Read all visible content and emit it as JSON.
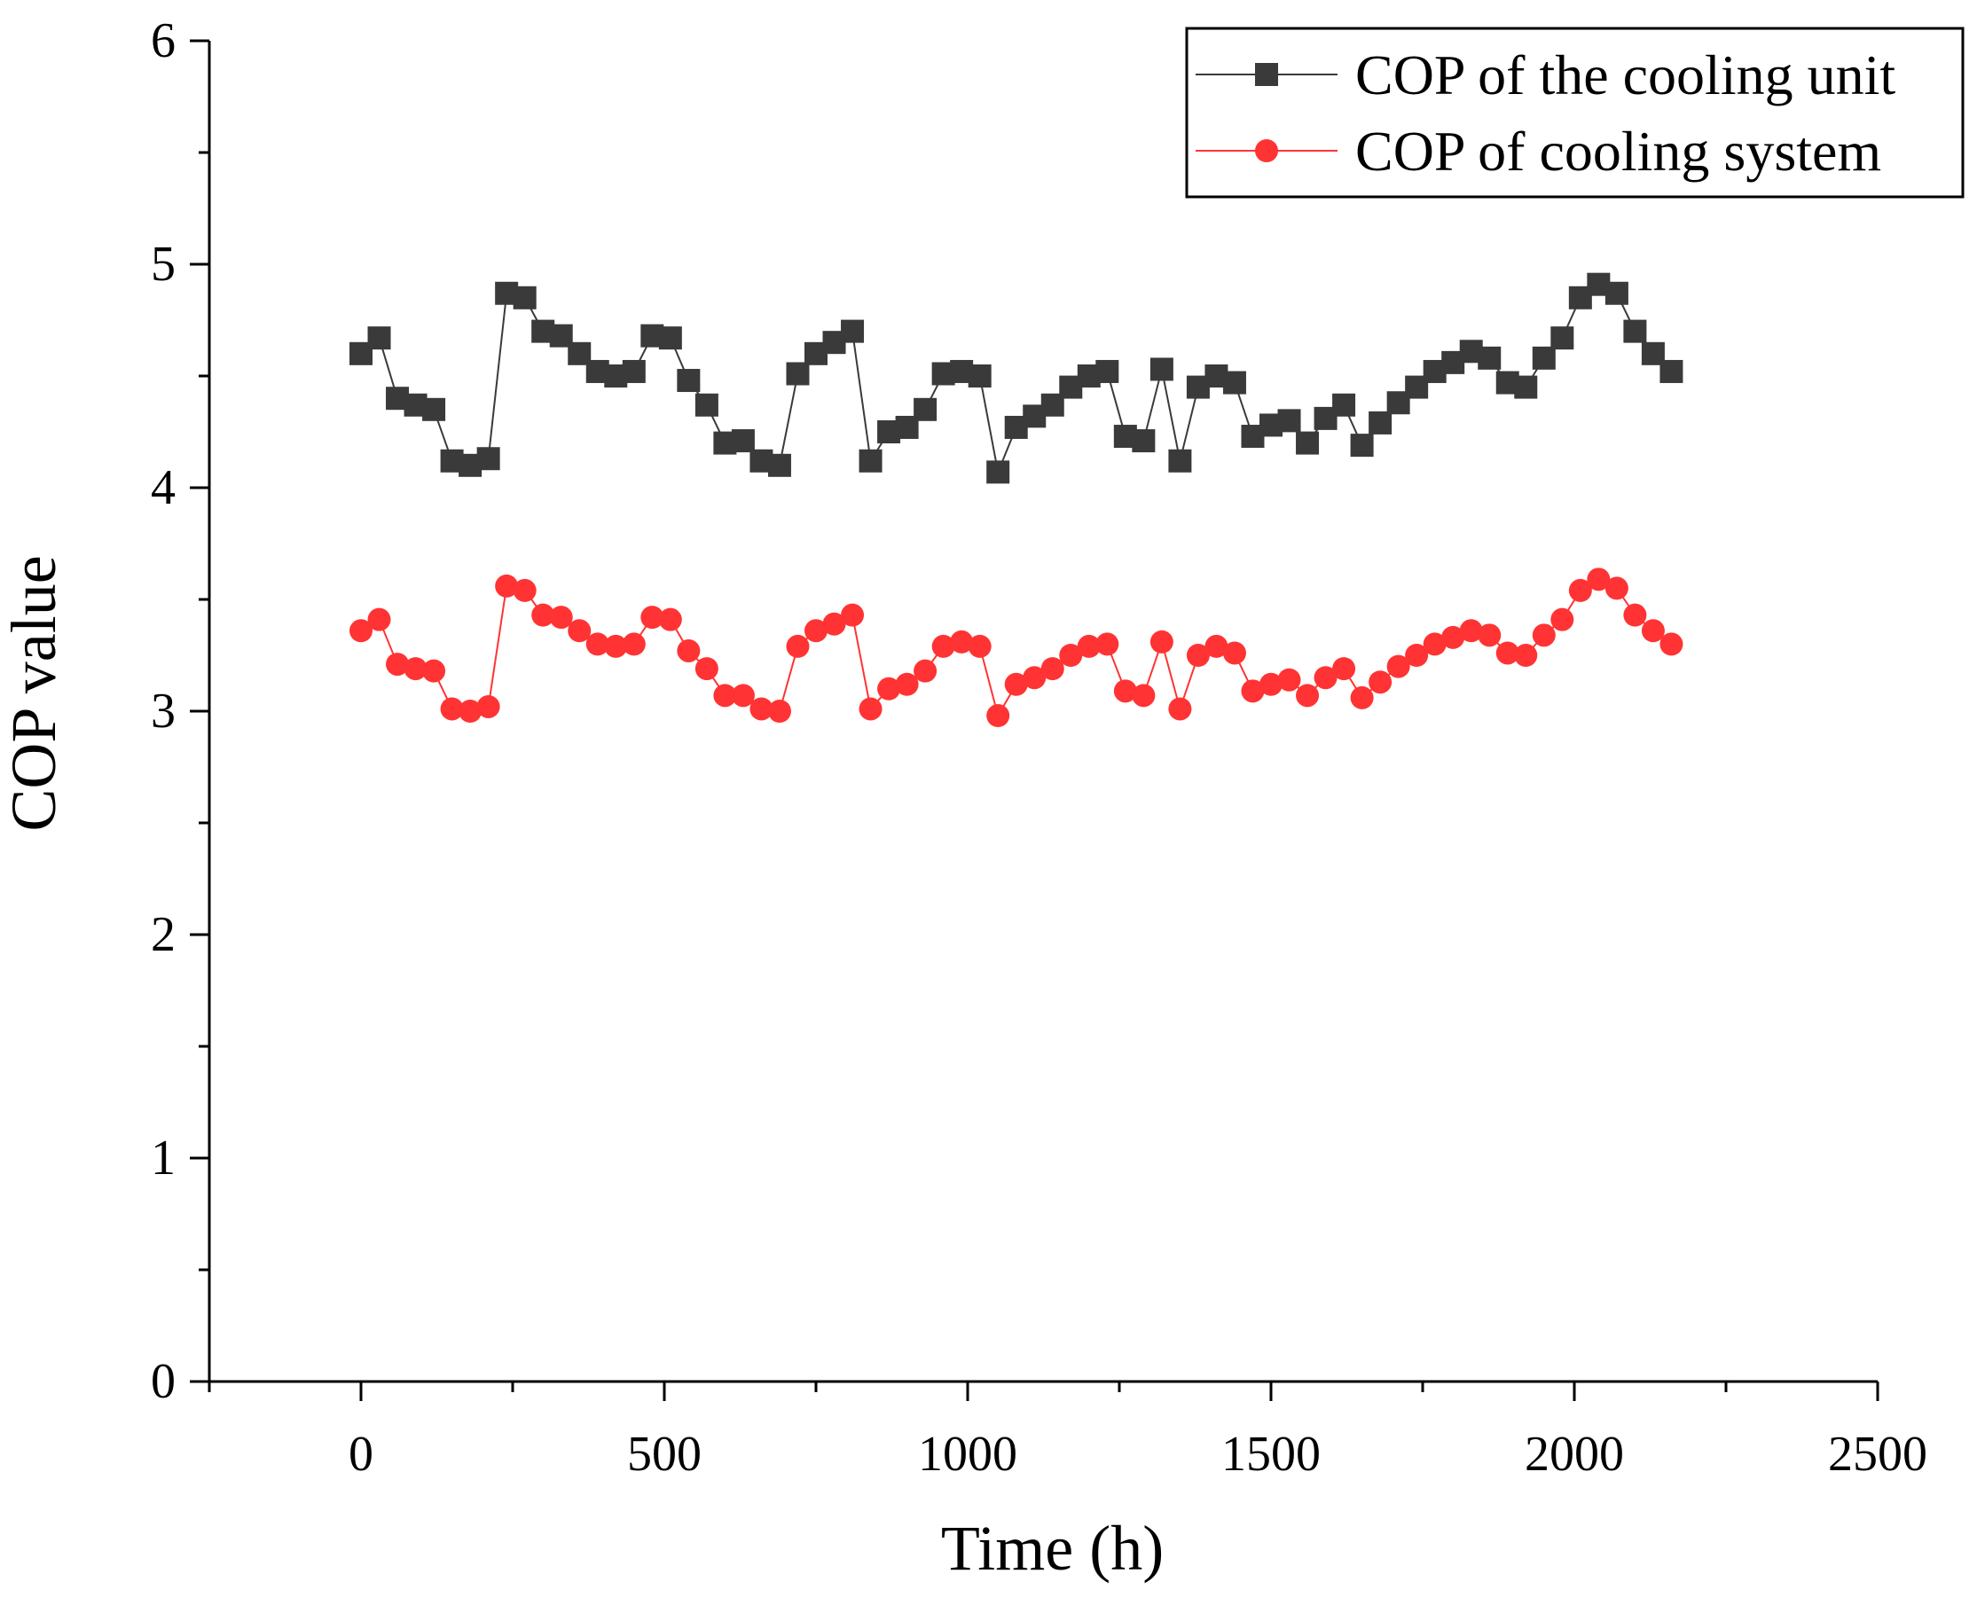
{
  "chart_data": {
    "type": "line",
    "title": "",
    "xlabel": "Time (h)",
    "ylabel": "COP value",
    "xlim": [
      -250,
      2500
    ],
    "ylim": [
      0,
      6
    ],
    "xticks": [
      0,
      500,
      1000,
      1500,
      2000,
      2500
    ],
    "xtick_labels": [
      "0",
      "500",
      "1000",
      "1500",
      "2000",
      "2500"
    ],
    "yticks": [
      0,
      1,
      2,
      3,
      4,
      5,
      6
    ],
    "ytick_labels": [
      "0",
      "1",
      "2",
      "3",
      "4",
      "5",
      "6"
    ],
    "grid": false,
    "legend_position": "top-right",
    "x": [
      0,
      30,
      60,
      90,
      120,
      150,
      180,
      210,
      240,
      270,
      300,
      330,
      360,
      390,
      420,
      450,
      480,
      510,
      540,
      570,
      600,
      630,
      660,
      690,
      720,
      750,
      780,
      810,
      840,
      870,
      900,
      930,
      960,
      990,
      1020,
      1050,
      1080,
      1110,
      1140,
      1170,
      1200,
      1230,
      1260,
      1290,
      1320,
      1350,
      1380,
      1410,
      1440,
      1470,
      1500,
      1530,
      1560,
      1590,
      1620,
      1650,
      1680,
      1710,
      1740,
      1770,
      1800,
      1830,
      1860,
      1890,
      1920,
      1950,
      1980,
      2010,
      2040,
      2070,
      2100,
      2130,
      2160
    ],
    "series": [
      {
        "name": "COP of the cooling unit",
        "color": "#3a3a3a",
        "marker": "square",
        "values": [
          4.6,
          4.67,
          4.4,
          4.37,
          4.35,
          4.12,
          4.1,
          4.13,
          4.87,
          4.85,
          4.7,
          4.68,
          4.6,
          4.52,
          4.5,
          4.52,
          4.68,
          4.67,
          4.48,
          4.37,
          4.2,
          4.21,
          4.12,
          4.1,
          4.51,
          4.6,
          4.65,
          4.7,
          4.12,
          4.25,
          4.27,
          4.35,
          4.51,
          4.52,
          4.5,
          4.07,
          4.27,
          4.32,
          4.37,
          4.45,
          4.5,
          4.52,
          4.23,
          4.21,
          4.53,
          4.12,
          4.45,
          4.5,
          4.47,
          4.23,
          4.28,
          4.3,
          4.2,
          4.31,
          4.37,
          4.19,
          4.29,
          4.38,
          4.45,
          4.52,
          4.56,
          4.61,
          4.58,
          4.47,
          4.45,
          4.58,
          4.67,
          4.85,
          4.91,
          4.87,
          4.7,
          4.6,
          4.52
        ]
      },
      {
        "name": "COP of cooling system",
        "color": "#ff3333",
        "marker": "circle",
        "values": [
          3.36,
          3.41,
          3.21,
          3.19,
          3.18,
          3.01,
          3.0,
          3.02,
          3.56,
          3.54,
          3.43,
          3.42,
          3.36,
          3.3,
          3.29,
          3.3,
          3.42,
          3.41,
          3.27,
          3.19,
          3.07,
          3.07,
          3.01,
          3.0,
          3.29,
          3.36,
          3.39,
          3.43,
          3.01,
          3.1,
          3.12,
          3.18,
          3.29,
          3.31,
          3.29,
          2.98,
          3.12,
          3.15,
          3.19,
          3.25,
          3.29,
          3.3,
          3.09,
          3.07,
          3.31,
          3.01,
          3.25,
          3.29,
          3.26,
          3.09,
          3.12,
          3.14,
          3.07,
          3.15,
          3.19,
          3.06,
          3.13,
          3.2,
          3.25,
          3.3,
          3.33,
          3.36,
          3.34,
          3.26,
          3.25,
          3.34,
          3.41,
          3.54,
          3.59,
          3.55,
          3.43,
          3.36,
          3.3
        ]
      }
    ]
  }
}
